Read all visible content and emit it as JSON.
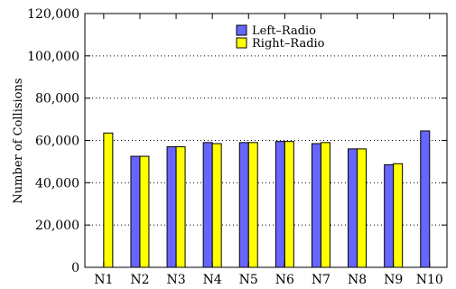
{
  "chart_data": {
    "type": "bar",
    "categories": [
      "N1",
      "N2",
      "N3",
      "N4",
      "N5",
      "N6",
      "N7",
      "N8",
      "N9",
      "N10"
    ],
    "series": [
      {
        "name": "Left–Radio",
        "color": "#6666ff",
        "values": [
          null,
          52500,
          57000,
          59000,
          59000,
          59500,
          58500,
          56000,
          48500,
          64500
        ]
      },
      {
        "name": "Right–Radio",
        "color": "#ffff00",
        "values": [
          63500,
          52500,
          57000,
          58500,
          59000,
          59500,
          59000,
          56000,
          49000,
          null
        ]
      }
    ],
    "title": "",
    "xlabel": "",
    "ylabel": "Number of Collisions",
    "ylim": [
      0,
      120000
    ],
    "yticks": [
      0,
      20000,
      40000,
      60000,
      80000,
      100000,
      120000
    ],
    "ytick_labels": [
      "0",
      "20,000",
      "40,000",
      "60,000",
      "80,000",
      "100,000",
      "120,000"
    ],
    "grid": "horizontal-dotted",
    "legend_position": "top-center"
  }
}
